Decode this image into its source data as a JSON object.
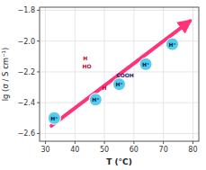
{
  "chart_data": {
    "type": "scatter",
    "xlabel": "T (°C)",
    "ylabel": "lg (σ / S cm⁻¹)",
    "xlim": [
      28,
      82
    ],
    "ylim": [
      -2.65,
      -1.78
    ],
    "xticks": [
      30,
      40,
      50,
      60,
      70,
      80
    ],
    "yticks": [
      {
        "value": -2.6,
        "label": "−2.6"
      },
      {
        "value": -2.4,
        "label": "−2.4"
      },
      {
        "value": -2.2,
        "label": "−2.2"
      },
      {
        "value": -2.0,
        "label": "−2.0"
      },
      {
        "value": -1.8,
        "label": "−1.8"
      }
    ],
    "series": [
      {
        "type": "line",
        "color": "#ff3377",
        "x": [
          32,
          79
        ],
        "values": [
          -2.55,
          -1.87
        ]
      },
      {
        "type": "scatter",
        "color": "#55ccee",
        "x": [
          33,
          47,
          55,
          64,
          73
        ],
        "values": [
          -2.5,
          -2.38,
          -2.28,
          -2.15,
          -2.02
        ]
      }
    ],
    "annotations": [
      {
        "text": "H⁺",
        "x": 33,
        "y": -2.5,
        "color": "#002244"
      },
      {
        "text": "H⁺",
        "x": 47,
        "y": -2.38,
        "color": "#002244"
      },
      {
        "text": "H⁺",
        "x": 55,
        "y": -2.28,
        "color": "#002244"
      },
      {
        "text": "H⁺",
        "x": 64,
        "y": -2.15,
        "color": "#002244"
      },
      {
        "text": "H⁺",
        "x": 73,
        "y": -2.02,
        "color": "#002244"
      },
      {
        "text": "HO",
        "x": 44,
        "y": -2.16,
        "color": "#cc0033"
      },
      {
        "text": "H",
        "x": 43.5,
        "y": -2.11,
        "color": "#cc0033"
      },
      {
        "text": "COOH",
        "x": 57,
        "y": -2.22,
        "color": "#222266"
      },
      {
        "text": "H",
        "x": 50,
        "y": -2.3,
        "color": "#cc0033"
      }
    ]
  }
}
